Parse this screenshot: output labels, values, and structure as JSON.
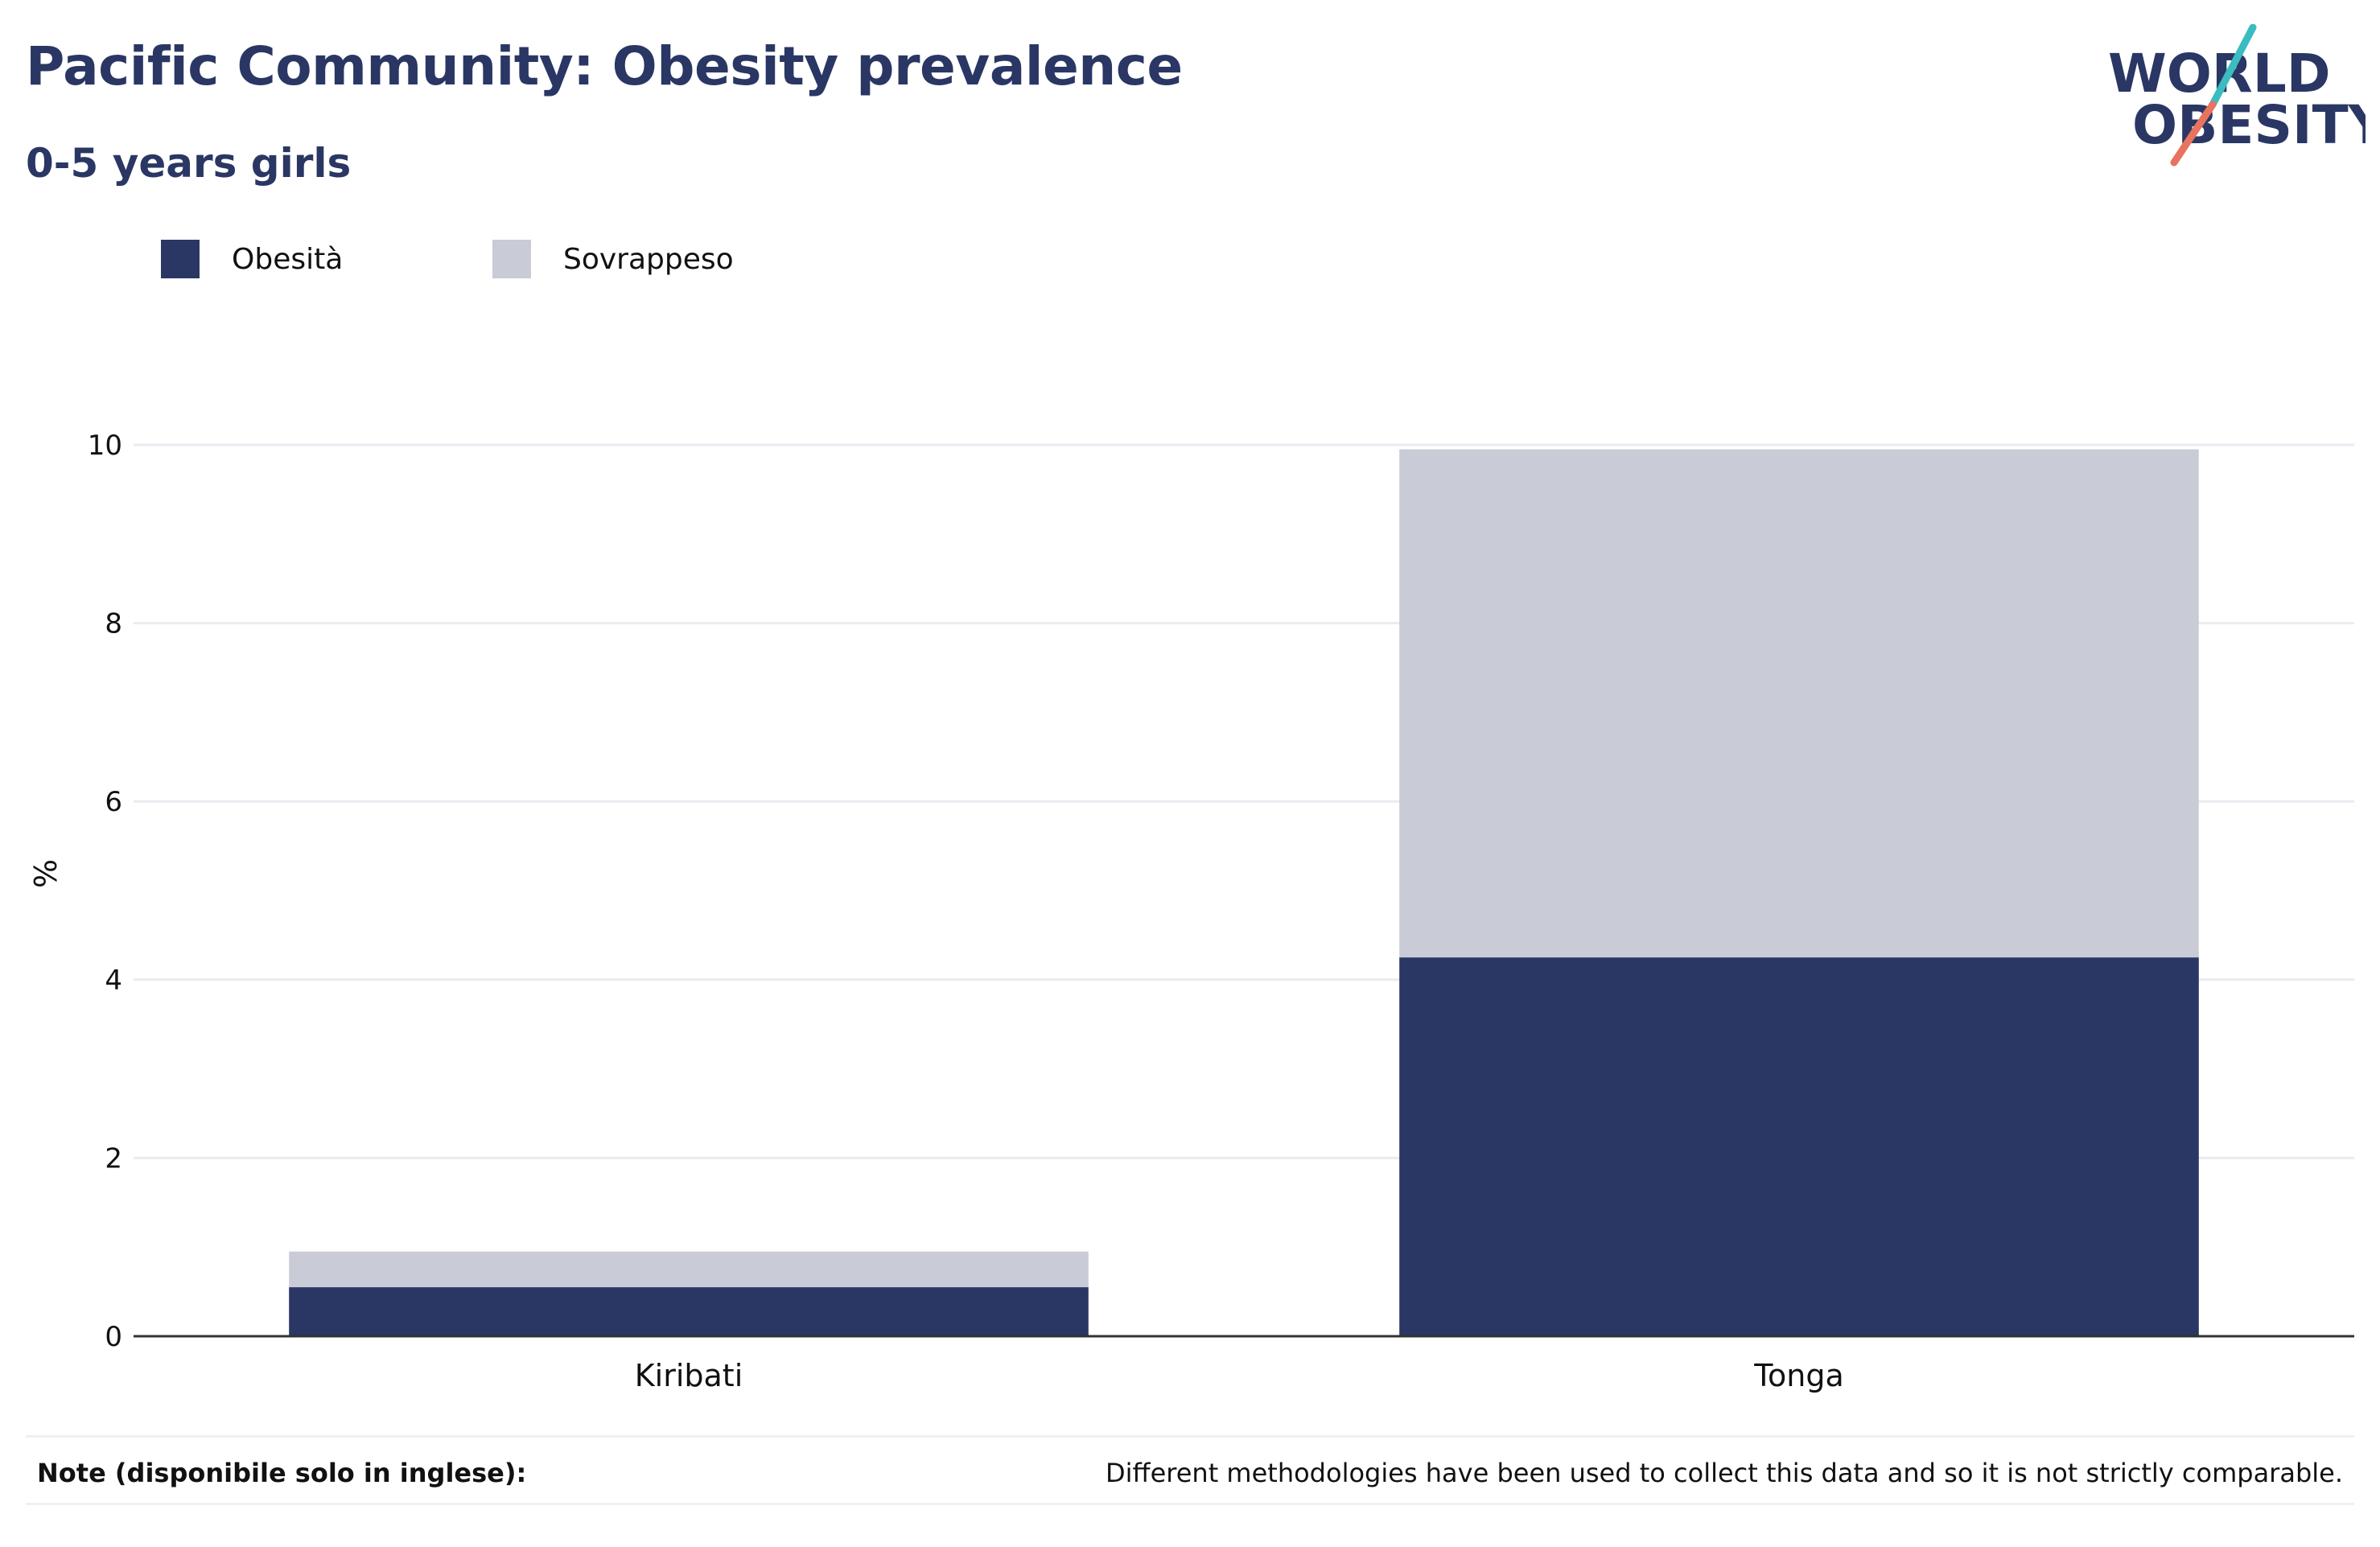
{
  "header": {
    "title": "Pacific Community: Obesity prevalence",
    "subtitle": "0-5 years girls"
  },
  "logo": {
    "line1": "WORLD",
    "line2": "OBESITY",
    "text_color": "#2a3764",
    "slash_teal": "#3bbcc1",
    "slash_coral": "#e8735f"
  },
  "legend": {
    "items": [
      {
        "label": "Obesità",
        "color": "#2a3764"
      },
      {
        "label": "Sovrappeso",
        "color": "#c9cbd6"
      }
    ]
  },
  "chart_data": {
    "type": "bar",
    "stacked": true,
    "categories": [
      "Kiribati",
      "Tonga"
    ],
    "series": [
      {
        "name": "Obesità",
        "color": "#2a3764",
        "values": [
          0.55,
          4.25
        ]
      },
      {
        "name": "Sovrappeso",
        "color": "#c9cbd6",
        "values": [
          0.4,
          5.7
        ]
      }
    ],
    "ylabel": "%",
    "ylim": [
      0,
      10
    ],
    "yticks": [
      "0",
      "2",
      "4",
      "6",
      "8",
      "10"
    ],
    "grid": true
  },
  "note": {
    "label": "Note (disponibile solo in inglese):",
    "text": "Different methodologies have been used to collect this data and so it is not strictly comparable."
  }
}
